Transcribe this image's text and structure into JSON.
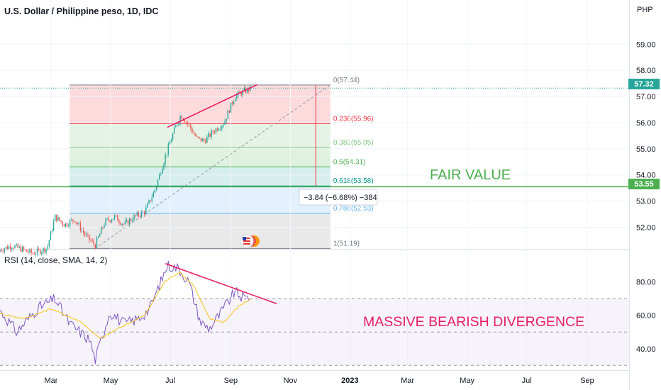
{
  "title": "U.S. Dollar / Philippine peso, 1D, IDC",
  "currency": "PHP",
  "chart_data": [
    {
      "type": "candlestick",
      "title": "U.S. Dollar / Philippine peso, 1D, IDC",
      "y_unit": "PHP",
      "ylim": [
        51.2,
        60.2
      ],
      "y_ticks": [
        "59.00",
        "58.00",
        "57.00",
        "56.00",
        "55.00",
        "54.00",
        "53.00",
        "52.00"
      ],
      "x_ticks": [
        "Mar",
        "May",
        "Jul",
        "Sep",
        "Nov",
        "2023",
        "Mar",
        "May",
        "Jul",
        "Sep"
      ],
      "x_tick_dates": [
        "2022-03-01",
        "2022-05-01",
        "2022-07-01",
        "2022-09-01",
        "2022-11-01",
        "2023-01-01",
        "2023-03-01",
        "2023-05-01",
        "2023-07-01",
        "2023-09-01"
      ],
      "last_price": "57.32",
      "last_price_color": "#26a69a",
      "close_path": [
        [
          "2022-01-01",
          51.05
        ],
        [
          "2022-01-20",
          51.3
        ],
        [
          "2022-02-10",
          51.0
        ],
        [
          "2022-02-25",
          51.2
        ],
        [
          "2022-03-05",
          52.4
        ],
        [
          "2022-03-15",
          52.1
        ],
        [
          "2022-03-25",
          52.3
        ],
        [
          "2022-04-05",
          51.7
        ],
        [
          "2022-04-15",
          51.3
        ],
        [
          "2022-04-25",
          52.2
        ],
        [
          "2022-05-05",
          52.4
        ],
        [
          "2022-05-15",
          52.1
        ],
        [
          "2022-05-25",
          52.4
        ],
        [
          "2022-06-05",
          52.6
        ],
        [
          "2022-06-15",
          53.4
        ],
        [
          "2022-06-25",
          54.6
        ],
        [
          "2022-07-05",
          55.7
        ],
        [
          "2022-07-12",
          56.3
        ],
        [
          "2022-07-20",
          55.9
        ],
        [
          "2022-07-28",
          55.4
        ],
        [
          "2022-08-05",
          55.3
        ],
        [
          "2022-08-15",
          55.7
        ],
        [
          "2022-08-25",
          56.0
        ],
        [
          "2022-09-05",
          57.0
        ],
        [
          "2022-09-15",
          57.2
        ],
        [
          "2022-09-22",
          57.32
        ]
      ],
      "fibonacci": [
        {
          "label": "0(57.44)",
          "value": 57.44
        },
        {
          "label": "0.236(55.96)",
          "value": 55.96
        },
        {
          "label": "0.382(55.05)",
          "value": 55.05
        },
        {
          "label": "0.5(54.31)",
          "value": 54.31
        },
        {
          "label": "0.618(53.58)",
          "value": 53.58
        },
        {
          "label": "0.786(52.53)",
          "value": 52.53
        },
        {
          "label": "1(51.19)",
          "value": 51.19
        }
      ],
      "fair_value_level": "53.55",
      "fair_value_color": "#4caf50",
      "measure_label": "−3.84 (−6.68%) −384",
      "annotations": [
        "FAIR VALUE"
      ]
    },
    {
      "type": "line",
      "title": "RSI (14, close, SMA, 14, 2)",
      "ylim": [
        28,
        96
      ],
      "y_ticks": [
        "80.00",
        "60.00",
        "40.00"
      ],
      "levels": [
        70,
        50,
        30
      ],
      "series": [
        {
          "color": "#7e57c2",
          "values": [
            [
              "2022-01-01",
              68
            ],
            [
              "2022-01-25",
              50
            ],
            [
              "2022-02-15",
              64
            ],
            [
              "2022-03-05",
              70
            ],
            [
              "2022-03-20",
              55
            ],
            [
              "2022-04-10",
              45
            ],
            [
              "2022-04-15",
              33
            ],
            [
              "2022-04-30",
              62
            ],
            [
              "2022-05-15",
              55
            ],
            [
              "2022-05-30",
              58
            ],
            [
              "2022-06-10",
              64
            ],
            [
              "2022-06-20",
              78
            ],
            [
              "2022-06-28",
              90
            ],
            [
              "2022-07-10",
              88
            ],
            [
              "2022-07-20",
              80
            ],
            [
              "2022-08-01",
              56
            ],
            [
              "2022-08-10",
              52
            ],
            [
              "2022-08-20",
              60
            ],
            [
              "2022-09-05",
              74
            ],
            [
              "2022-09-15",
              70
            ],
            [
              "2022-09-22",
              72
            ]
          ]
        },
        {
          "color": "#f5c518",
          "values": [
            [
              "2022-01-01",
              62
            ],
            [
              "2022-02-01",
              58
            ],
            [
              "2022-03-01",
              64
            ],
            [
              "2022-04-01",
              56
            ],
            [
              "2022-04-20",
              46
            ],
            [
              "2022-05-15",
              54
            ],
            [
              "2022-06-05",
              60
            ],
            [
              "2022-06-25",
              80
            ],
            [
              "2022-07-10",
              86
            ],
            [
              "2022-07-25",
              78
            ],
            [
              "2022-08-10",
              58
            ],
            [
              "2022-08-25",
              56
            ],
            [
              "2022-09-10",
              66
            ],
            [
              "2022-09-22",
              70
            ]
          ]
        }
      ],
      "annotations": [
        "MASSIVE BEARISH DIVERGENCE"
      ]
    }
  ]
}
